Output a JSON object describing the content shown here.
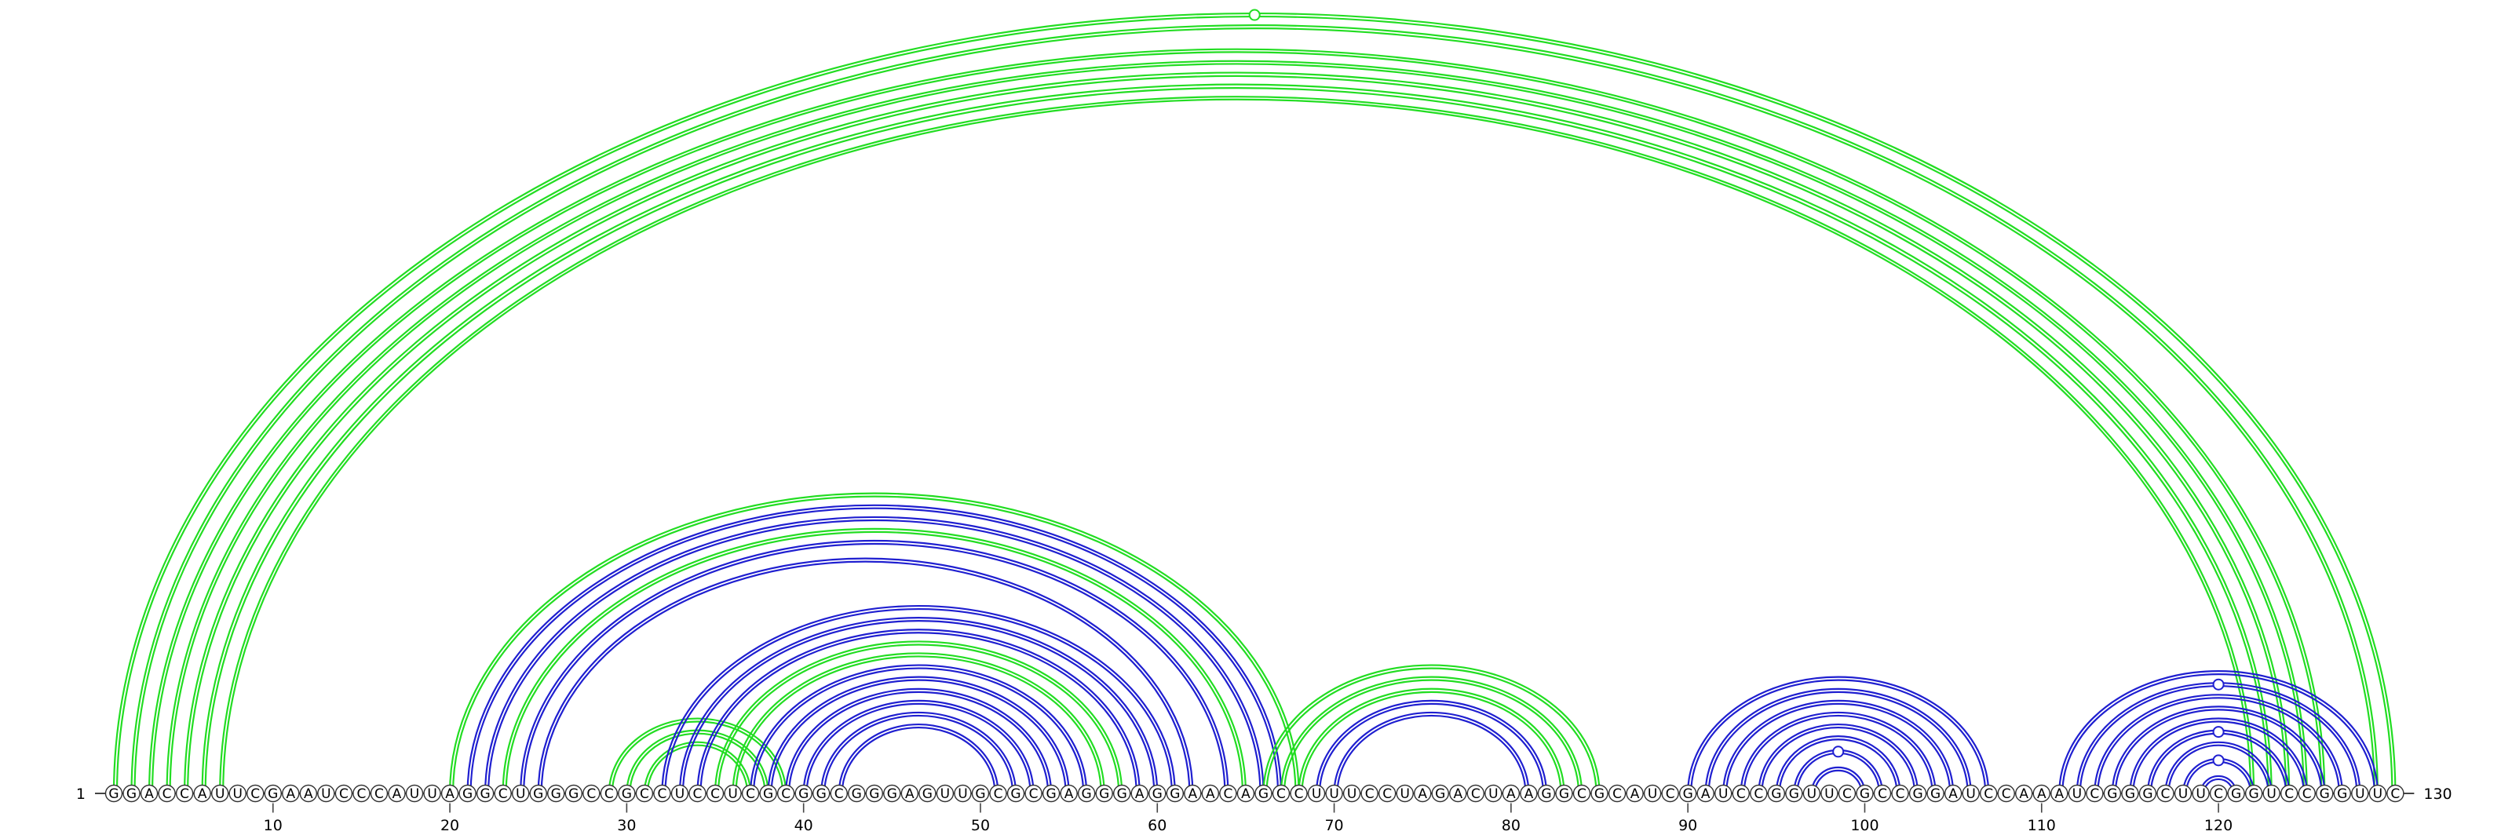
{
  "sequence": "GGACCAUUCGAAUCCCAUUAGGCUGGGCCGCCUCCUCGCGGCGGGAGUUGCGCGAGGGAGGAACAGCCUUUCCUAGACUAAGGCGCAUCGAUCCGGUUCGCCGGAUCCAAAUCGGGCUUCGGUCCGGUUC",
  "start_label": "1",
  "end_label": "130",
  "tick_labels": [
    "10",
    "20",
    "30",
    "40",
    "50",
    "60",
    "70",
    "80",
    "90",
    "100",
    "110",
    "120"
  ],
  "colors": {
    "blue": "#1f1fd0",
    "green": "#22dd22",
    "backbone": "#444444"
  },
  "arcs": [
    {
      "i": 1,
      "j": 130,
      "color": "green"
    },
    {
      "i": 2,
      "j": 129,
      "color": "green"
    },
    {
      "i": 3,
      "j": 126,
      "color": "green"
    },
    {
      "i": 4,
      "j": 125,
      "color": "green"
    },
    {
      "i": 5,
      "j": 124,
      "color": "green"
    },
    {
      "i": 6,
      "j": 123,
      "color": "green"
    },
    {
      "i": 7,
      "j": 122,
      "color": "green"
    },
    {
      "i": 20,
      "j": 68,
      "color": "green"
    },
    {
      "i": 21,
      "j": 67,
      "color": "blue"
    },
    {
      "i": 22,
      "j": 66,
      "color": "blue"
    },
    {
      "i": 23,
      "j": 65,
      "color": "green"
    },
    {
      "i": 24,
      "j": 64,
      "color": "blue"
    },
    {
      "i": 25,
      "j": 62,
      "color": "blue"
    },
    {
      "i": 29,
      "j": 39,
      "color": "green"
    },
    {
      "i": 30,
      "j": 38,
      "color": "green"
    },
    {
      "i": 31,
      "j": 37,
      "color": "green"
    },
    {
      "i": 32,
      "j": 61,
      "color": "blue"
    },
    {
      "i": 33,
      "j": 60,
      "color": "blue"
    },
    {
      "i": 34,
      "j": 59,
      "color": "blue"
    },
    {
      "i": 35,
      "j": 58,
      "color": "green"
    },
    {
      "i": 36,
      "j": 57,
      "color": "green"
    },
    {
      "i": 37,
      "j": 56,
      "color": "blue"
    },
    {
      "i": 38,
      "j": 55,
      "color": "blue"
    },
    {
      "i": 39,
      "j": 54,
      "color": "blue"
    },
    {
      "i": 40,
      "j": 53,
      "color": "blue"
    },
    {
      "i": 41,
      "j": 52,
      "color": "blue"
    },
    {
      "i": 42,
      "j": 51,
      "color": "blue"
    },
    {
      "i": 66,
      "j": 85,
      "color": "green"
    },
    {
      "i": 67,
      "j": 84,
      "color": "green"
    },
    {
      "i": 68,
      "j": 83,
      "color": "green"
    },
    {
      "i": 69,
      "j": 82,
      "color": "blue"
    },
    {
      "i": 70,
      "j": 81,
      "color": "blue"
    },
    {
      "i": 90,
      "j": 107,
      "color": "blue"
    },
    {
      "i": 91,
      "j": 106,
      "color": "blue"
    },
    {
      "i": 92,
      "j": 105,
      "color": "blue"
    },
    {
      "i": 93,
      "j": 104,
      "color": "blue"
    },
    {
      "i": 94,
      "j": 103,
      "color": "blue"
    },
    {
      "i": 95,
      "j": 102,
      "color": "blue"
    },
    {
      "i": 96,
      "j": 101,
      "color": "blue"
    },
    {
      "i": 97,
      "j": 100,
      "color": "blue"
    },
    {
      "i": 111,
      "j": 129,
      "color": "blue"
    },
    {
      "i": 112,
      "j": 128,
      "color": "blue"
    },
    {
      "i": 113,
      "j": 127,
      "color": "blue"
    },
    {
      "i": 114,
      "j": 126,
      "color": "blue"
    },
    {
      "i": 115,
      "j": 125,
      "color": "blue"
    },
    {
      "i": 116,
      "j": 124,
      "color": "blue"
    },
    {
      "i": 117,
      "j": 123,
      "color": "blue"
    },
    {
      "i": 118,
      "j": 122,
      "color": "blue"
    },
    {
      "i": 119,
      "j": 121,
      "color": "blue"
    }
  ],
  "markers": [
    {
      "arc": 0,
      "color": "green"
    },
    {
      "arc": 38,
      "color": "blue"
    },
    {
      "arc": 41,
      "color": "blue"
    },
    {
      "arc": 45,
      "color": "blue"
    },
    {
      "arc": 47,
      "color": "blue"
    }
  ]
}
